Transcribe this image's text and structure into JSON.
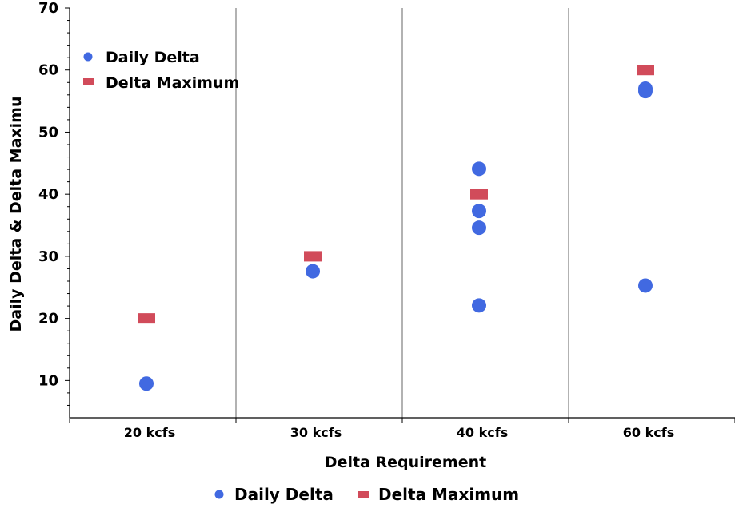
{
  "chart_data": {
    "type": "scatter",
    "title": "",
    "xlabel": "Delta Requirement",
    "ylabel": "Daily Delta & Delta Maximu",
    "categories": [
      "20 kcfs",
      "30 kcfs",
      "40 kcfs",
      "60 kcfs"
    ],
    "ylim": [
      4,
      70
    ],
    "yticks": [
      10,
      20,
      30,
      40,
      50,
      60,
      70
    ],
    "grid": "vertical category separators",
    "legend_inside": "top-left",
    "legend_bottom": "bottom-center",
    "series": [
      {
        "name": "Daily Delta",
        "marker": "circle",
        "color": "#4169E1",
        "points": [
          {
            "category": "20 kcfs",
            "y": 9.5
          },
          {
            "category": "30 kcfs",
            "y": 27.6
          },
          {
            "category": "40 kcfs",
            "y": 44.1
          },
          {
            "category": "40 kcfs",
            "y": 37.3
          },
          {
            "category": "40 kcfs",
            "y": 34.6
          },
          {
            "category": "40 kcfs",
            "y": 22.1
          },
          {
            "category": "60 kcfs",
            "y": 57.0
          },
          {
            "category": "60 kcfs",
            "y": 56.6
          },
          {
            "category": "60 kcfs",
            "y": 25.3
          }
        ]
      },
      {
        "name": "Delta Maximum",
        "marker": "bar",
        "color": "#D14B5A",
        "points": [
          {
            "category": "20 kcfs",
            "y": 20
          },
          {
            "category": "30 kcfs",
            "y": 30
          },
          {
            "category": "40 kcfs",
            "y": 40
          },
          {
            "category": "60 kcfs",
            "y": 60
          }
        ]
      }
    ]
  }
}
